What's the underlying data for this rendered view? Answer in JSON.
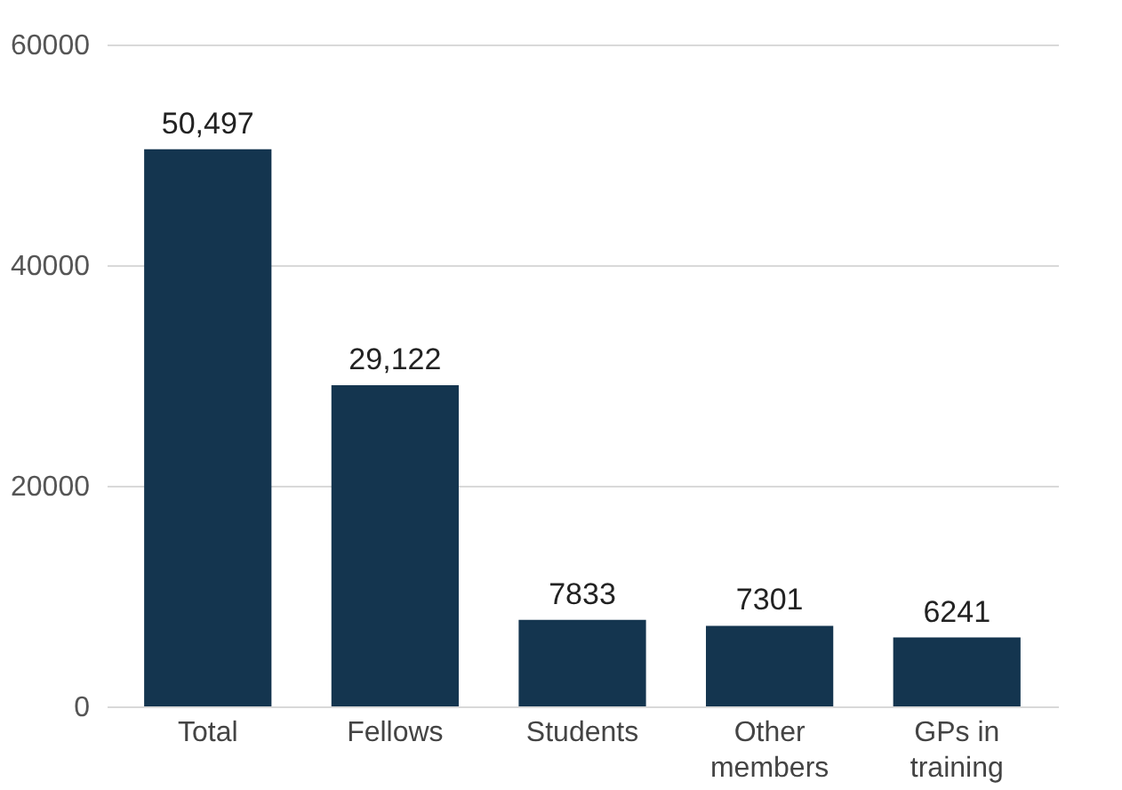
{
  "chart_data": {
    "type": "bar",
    "categories": [
      "Total",
      "Fellows",
      "Students",
      "Other members",
      "GPs in training"
    ],
    "values": [
      50497,
      29122,
      7833,
      7301,
      6241
    ],
    "value_labels": [
      "50,497",
      "29,122",
      "7833",
      "7301",
      "6241"
    ],
    "color": "#14354f",
    "ylim": [
      0,
      60000
    ],
    "yticks": [
      0,
      20000,
      40000,
      60000
    ],
    "grid": "y"
  }
}
